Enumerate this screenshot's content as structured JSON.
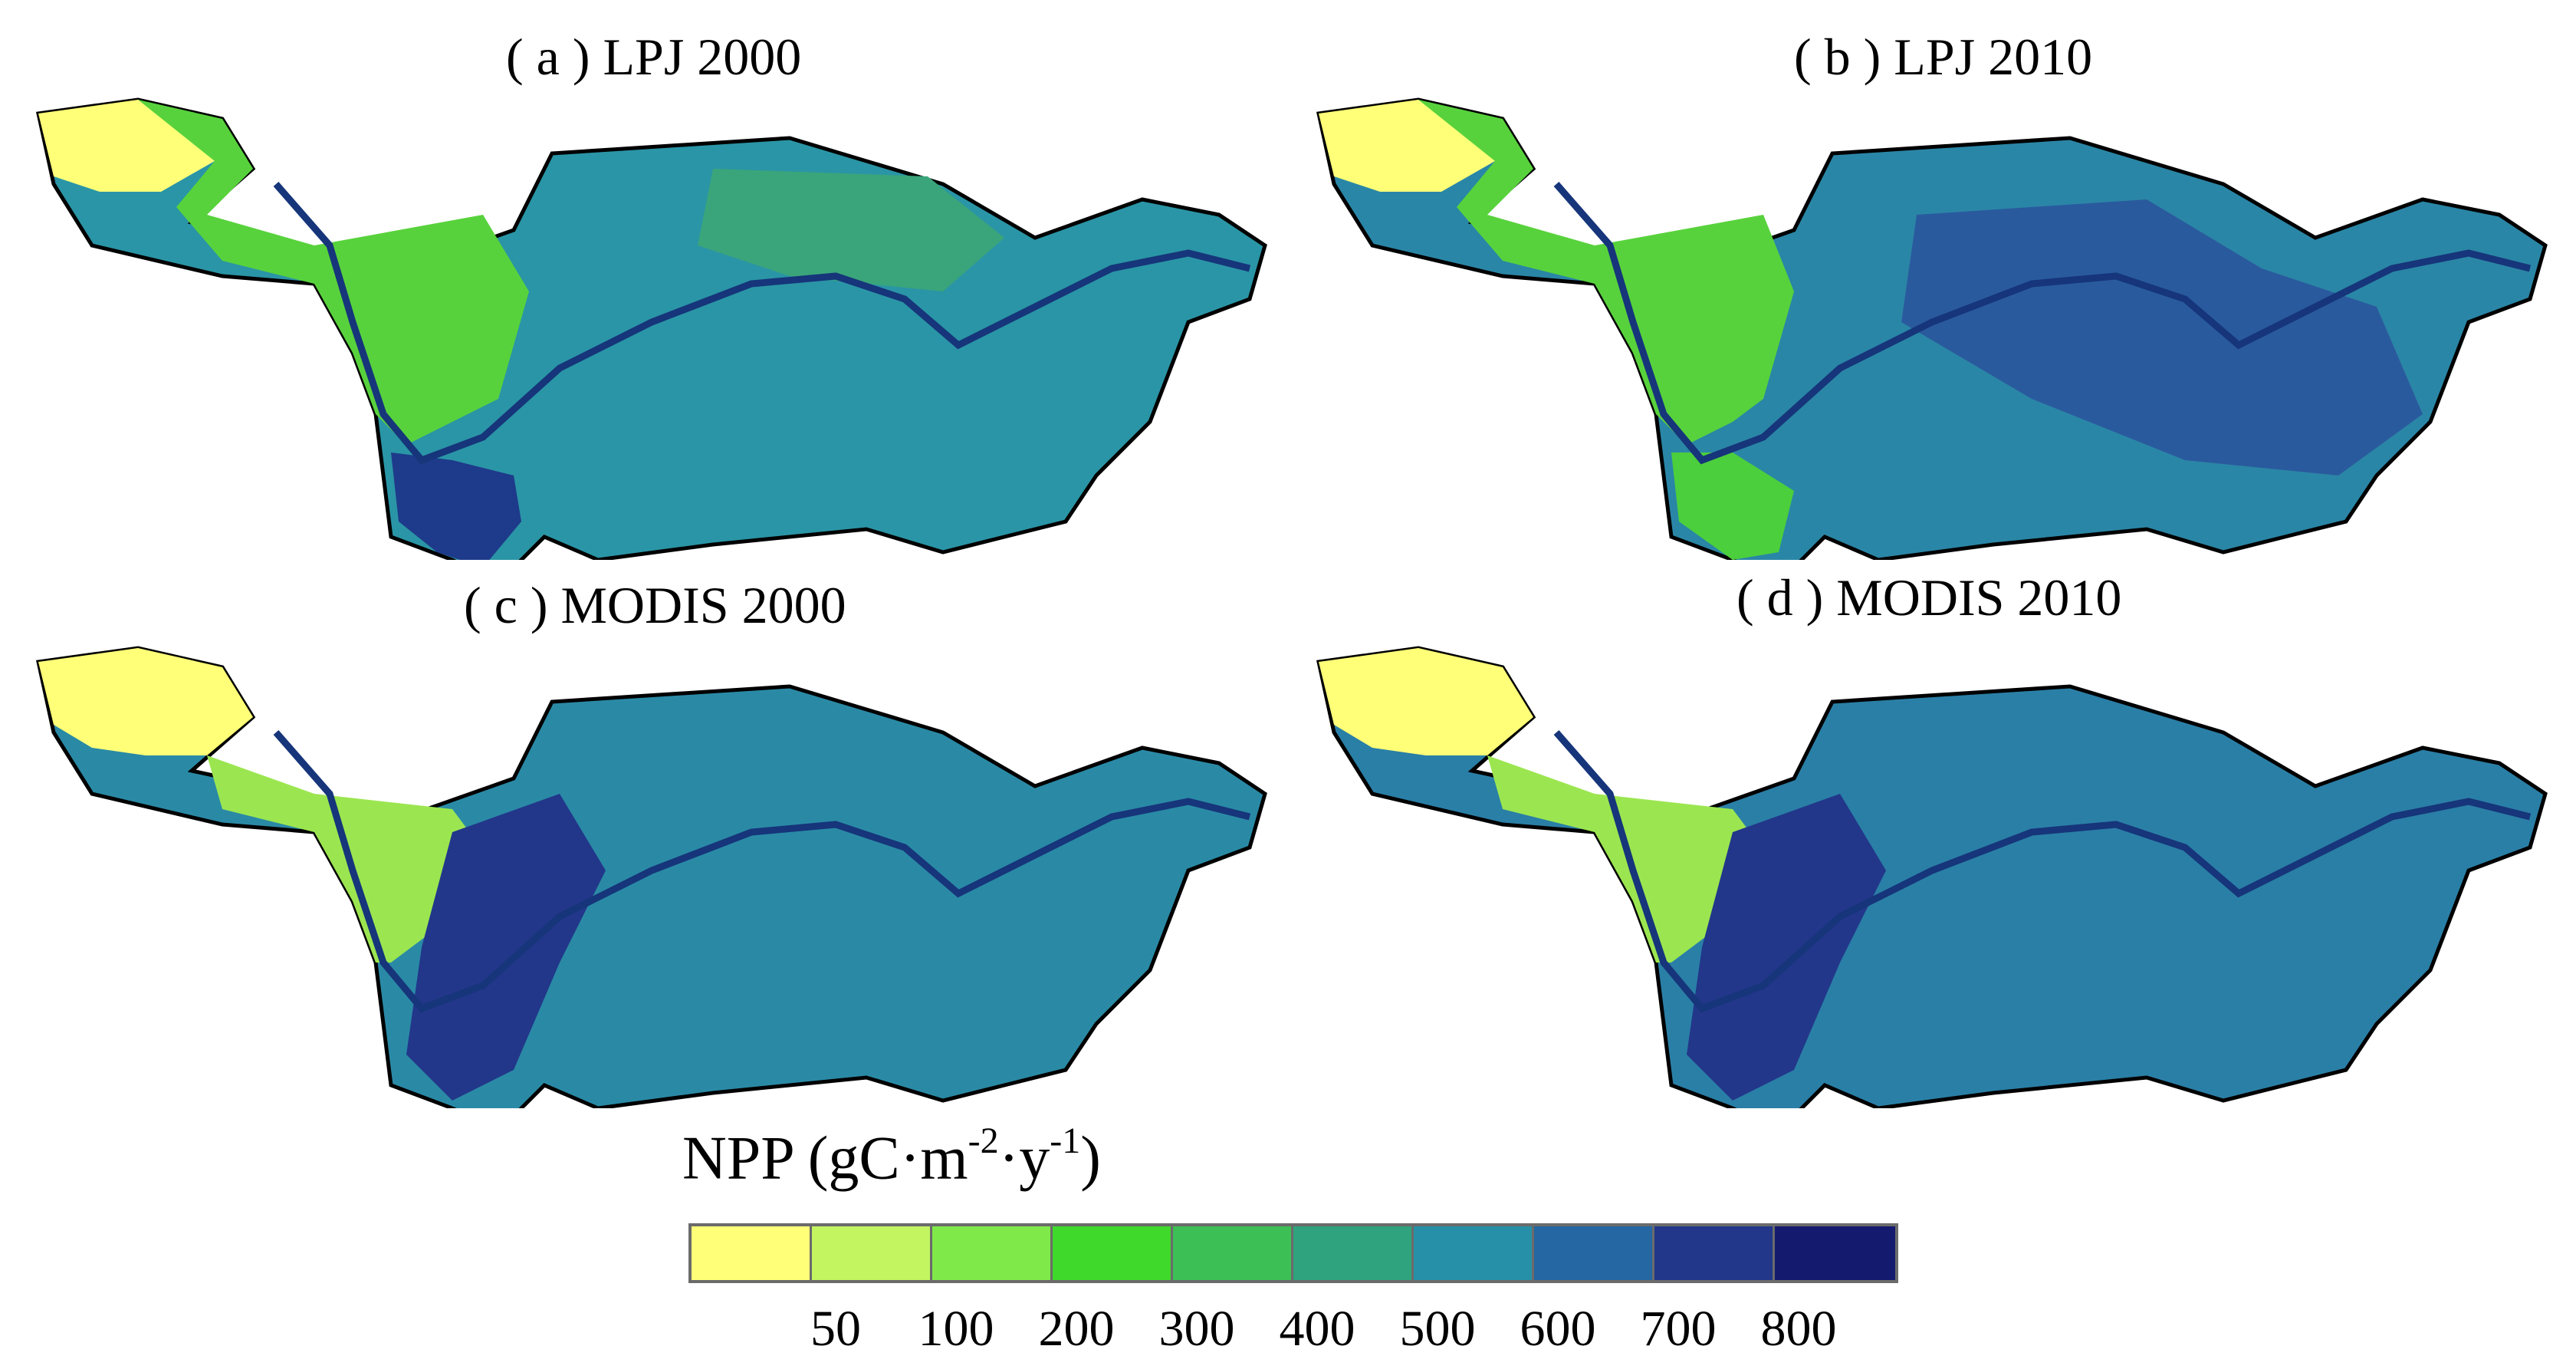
{
  "panels": [
    {
      "id": "a",
      "title": "( a ) LPJ 2000"
    },
    {
      "id": "b",
      "title": "( b ) LPJ 2010"
    },
    {
      "id": "c",
      "title": "( c ) MODIS 2000"
    },
    {
      "id": "d",
      "title": "( d ) MODIS 2010"
    }
  ],
  "legend": {
    "title_main": "NPP (gC·m",
    "title_exp1": "-2",
    "title_mid": "·y",
    "title_exp2": "-1",
    "title_end": ")",
    "ticks": [
      "50",
      "100",
      "200",
      "300",
      "400",
      "500",
      "600",
      "700",
      "800"
    ],
    "colors": [
      "#ffff78",
      "#c2f560",
      "#7fe94a",
      "#3fd92c",
      "#3cbf55",
      "#2ea37d",
      "#2590a8",
      "#2467a2",
      "#22378a",
      "#141a6e"
    ]
  },
  "map_colors": {
    "river": "#16357a",
    "outline": "#000000"
  }
}
